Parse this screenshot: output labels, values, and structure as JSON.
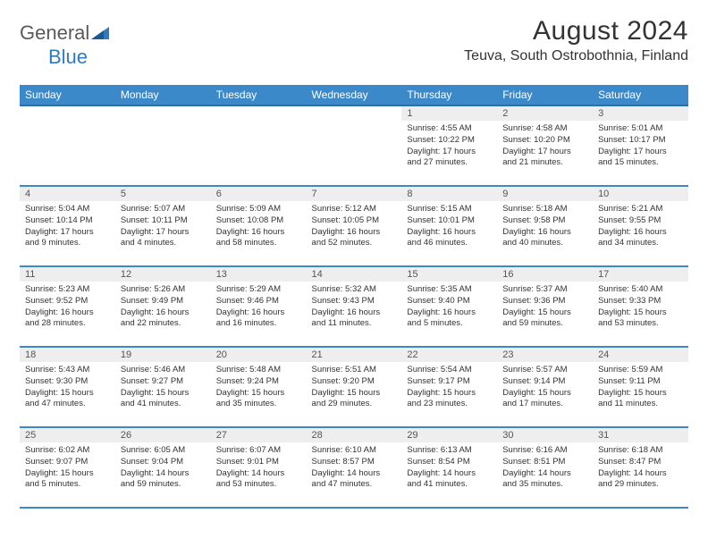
{
  "brand": {
    "part1": "General",
    "part2": "Blue"
  },
  "title": "August 2024",
  "location": "Teuva, South Ostrobothnia, Finland",
  "colors": {
    "header_bg": "#3b89c9",
    "header_border": "#2f6fa3",
    "row_border": "#3b89c9",
    "daynum_bg": "#eeeeee",
    "text": "#333333",
    "logo_gray": "#5a5a5a",
    "logo_blue": "#2f7bbf"
  },
  "weekdays": [
    "Sunday",
    "Monday",
    "Tuesday",
    "Wednesday",
    "Thursday",
    "Friday",
    "Saturday"
  ],
  "weeks": [
    [
      null,
      null,
      null,
      null,
      {
        "n": "1",
        "sunrise": "4:55 AM",
        "sunset": "10:22 PM",
        "dl": "17 hours and 27 minutes."
      },
      {
        "n": "2",
        "sunrise": "4:58 AM",
        "sunset": "10:20 PM",
        "dl": "17 hours and 21 minutes."
      },
      {
        "n": "3",
        "sunrise": "5:01 AM",
        "sunset": "10:17 PM",
        "dl": "17 hours and 15 minutes."
      }
    ],
    [
      {
        "n": "4",
        "sunrise": "5:04 AM",
        "sunset": "10:14 PM",
        "dl": "17 hours and 9 minutes."
      },
      {
        "n": "5",
        "sunrise": "5:07 AM",
        "sunset": "10:11 PM",
        "dl": "17 hours and 4 minutes."
      },
      {
        "n": "6",
        "sunrise": "5:09 AM",
        "sunset": "10:08 PM",
        "dl": "16 hours and 58 minutes."
      },
      {
        "n": "7",
        "sunrise": "5:12 AM",
        "sunset": "10:05 PM",
        "dl": "16 hours and 52 minutes."
      },
      {
        "n": "8",
        "sunrise": "5:15 AM",
        "sunset": "10:01 PM",
        "dl": "16 hours and 46 minutes."
      },
      {
        "n": "9",
        "sunrise": "5:18 AM",
        "sunset": "9:58 PM",
        "dl": "16 hours and 40 minutes."
      },
      {
        "n": "10",
        "sunrise": "5:21 AM",
        "sunset": "9:55 PM",
        "dl": "16 hours and 34 minutes."
      }
    ],
    [
      {
        "n": "11",
        "sunrise": "5:23 AM",
        "sunset": "9:52 PM",
        "dl": "16 hours and 28 minutes."
      },
      {
        "n": "12",
        "sunrise": "5:26 AM",
        "sunset": "9:49 PM",
        "dl": "16 hours and 22 minutes."
      },
      {
        "n": "13",
        "sunrise": "5:29 AM",
        "sunset": "9:46 PM",
        "dl": "16 hours and 16 minutes."
      },
      {
        "n": "14",
        "sunrise": "5:32 AM",
        "sunset": "9:43 PM",
        "dl": "16 hours and 11 minutes."
      },
      {
        "n": "15",
        "sunrise": "5:35 AM",
        "sunset": "9:40 PM",
        "dl": "16 hours and 5 minutes."
      },
      {
        "n": "16",
        "sunrise": "5:37 AM",
        "sunset": "9:36 PM",
        "dl": "15 hours and 59 minutes."
      },
      {
        "n": "17",
        "sunrise": "5:40 AM",
        "sunset": "9:33 PM",
        "dl": "15 hours and 53 minutes."
      }
    ],
    [
      {
        "n": "18",
        "sunrise": "5:43 AM",
        "sunset": "9:30 PM",
        "dl": "15 hours and 47 minutes."
      },
      {
        "n": "19",
        "sunrise": "5:46 AM",
        "sunset": "9:27 PM",
        "dl": "15 hours and 41 minutes."
      },
      {
        "n": "20",
        "sunrise": "5:48 AM",
        "sunset": "9:24 PM",
        "dl": "15 hours and 35 minutes."
      },
      {
        "n": "21",
        "sunrise": "5:51 AM",
        "sunset": "9:20 PM",
        "dl": "15 hours and 29 minutes."
      },
      {
        "n": "22",
        "sunrise": "5:54 AM",
        "sunset": "9:17 PM",
        "dl": "15 hours and 23 minutes."
      },
      {
        "n": "23",
        "sunrise": "5:57 AM",
        "sunset": "9:14 PM",
        "dl": "15 hours and 17 minutes."
      },
      {
        "n": "24",
        "sunrise": "5:59 AM",
        "sunset": "9:11 PM",
        "dl": "15 hours and 11 minutes."
      }
    ],
    [
      {
        "n": "25",
        "sunrise": "6:02 AM",
        "sunset": "9:07 PM",
        "dl": "15 hours and 5 minutes."
      },
      {
        "n": "26",
        "sunrise": "6:05 AM",
        "sunset": "9:04 PM",
        "dl": "14 hours and 59 minutes."
      },
      {
        "n": "27",
        "sunrise": "6:07 AM",
        "sunset": "9:01 PM",
        "dl": "14 hours and 53 minutes."
      },
      {
        "n": "28",
        "sunrise": "6:10 AM",
        "sunset": "8:57 PM",
        "dl": "14 hours and 47 minutes."
      },
      {
        "n": "29",
        "sunrise": "6:13 AM",
        "sunset": "8:54 PM",
        "dl": "14 hours and 41 minutes."
      },
      {
        "n": "30",
        "sunrise": "6:16 AM",
        "sunset": "8:51 PM",
        "dl": "14 hours and 35 minutes."
      },
      {
        "n": "31",
        "sunrise": "6:18 AM",
        "sunset": "8:47 PM",
        "dl": "14 hours and 29 minutes."
      }
    ]
  ],
  "labels": {
    "sunrise": "Sunrise: ",
    "sunset": "Sunset: ",
    "daylight": "Daylight: "
  }
}
